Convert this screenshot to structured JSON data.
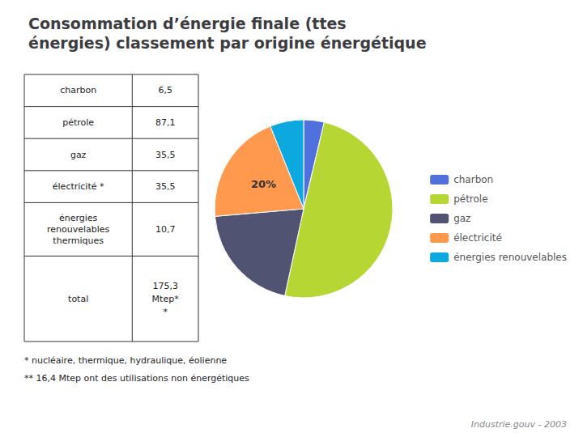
{
  "chart_data": {
    "type": "pie",
    "title": "Consommation d’énergie finale (ttes\nénergies) classement par origine énergétique",
    "categories": [
      "charbon",
      "pétrole",
      "gaz",
      "électricité",
      "énergies renouvelables"
    ],
    "values": [
      6.5,
      87.1,
      35.5,
      35.5,
      10.7
    ],
    "legend": "right",
    "annotations": [
      {
        "text": "20%",
        "category": "électricité"
      }
    ],
    "table": [
      [
        "charbon",
        "6,5"
      ],
      [
        "pétrole",
        "87,1"
      ],
      [
        "gaz",
        "35,5"
      ],
      [
        "électricité *",
        "35,5"
      ],
      [
        "énergies\nrenouvelables\nthermiques",
        "10,7"
      ],
      [
        "total",
        "175,3\nMtep*\n*"
      ]
    ],
    "footnotes": [
      "* nucléaire, thermique, hydraulique, éolienne",
      "** 16,4 Mtep ont des utilisations non énergétiques"
    ],
    "source": "Industrie.gouv - 2003"
  }
}
